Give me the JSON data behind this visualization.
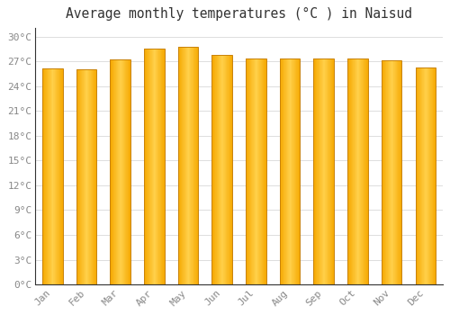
{
  "title": "Average monthly temperatures (°C ) in Naisud",
  "months": [
    "Jan",
    "Feb",
    "Mar",
    "Apr",
    "May",
    "Jun",
    "Jul",
    "Aug",
    "Sep",
    "Oct",
    "Nov",
    "Dec"
  ],
  "values": [
    26.1,
    26.0,
    27.2,
    28.5,
    28.8,
    27.8,
    27.3,
    27.4,
    27.3,
    27.3,
    27.1,
    26.3
  ],
  "bar_color_center": "#FFD04A",
  "bar_color_edge": "#F5A800",
  "bar_outline_color": "#C8820A",
  "ylim": [
    0,
    31
  ],
  "yticks": [
    0,
    3,
    6,
    9,
    12,
    15,
    18,
    21,
    24,
    27,
    30
  ],
  "background_color": "#FFFFFF",
  "grid_color": "#DDDDDD",
  "title_fontsize": 10.5,
  "tick_fontsize": 8,
  "bar_width": 0.6
}
